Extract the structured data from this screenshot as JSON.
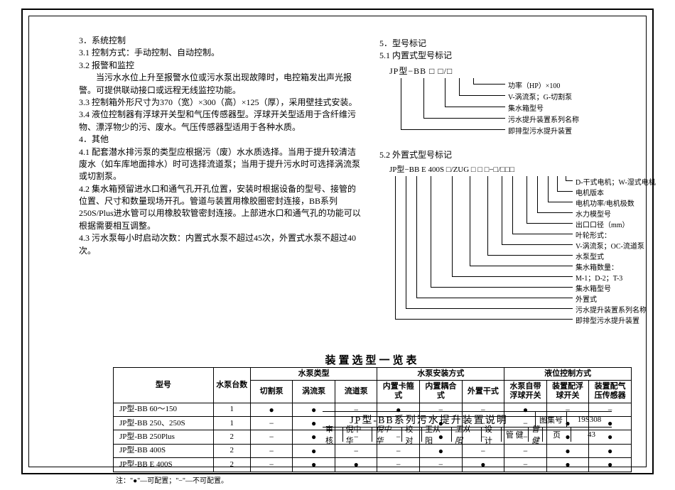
{
  "left": {
    "h3": "3．系统控制",
    "l31": "3.1 控制方式：手动控制、自动控制。",
    "l32": "3.2 报警和监控",
    "l32a": "当污水水位上升至报警水位或污水泵出现故障时，电控箱发出声光报警。可提供联动接口或远程无线监控功能。",
    "l33": "3.3 控制箱外形尺寸为370（宽）×300（高）×125（厚），采用壁挂式安装。",
    "l34": "3.4 液位控制器有浮球开关型和气压传感器型。浮球开关型适用于含纤维污物、漂浮物少的污、废水。气压传感器型适用于各种水质。",
    "h4": "4．其他",
    "l41": "4.1 配套潜水排污泵的类型应根据污（废）水水质选择。当用于提升较清洁废水（如车库地面排水）时可选择流道泵；当用于提升污水时可选择涡流泵或切割泵。",
    "l42": "4.2 集水箱预留进水口和通气孔开孔位置，安装时根据设备的型号、接管的位置、尺寸和数量现场开孔。管道与装置用橡胶圈密封连接，BB系列250S/Plus进水管可以用橡胶软管密封连接。上部进水口和通气孔的功能可以根据需要相互调整。",
    "l43": "4.3 污水泵每小时启动次数：内置式水泵不超过45次，外置式水泵不超过40次。"
  },
  "right": {
    "h5": "5．型号标记",
    "h51": "5.1 内置式型号标记",
    "model51": "JP型−BB □ □/□",
    "lbls51": [
      "功率（HP）×100",
      "V-涡流泵；G-切割泵",
      "集水箱型号",
      "污水提升装置系列名称",
      "即排型污水提升装置"
    ],
    "h52": "5.2 外置式型号标记",
    "model52": "JP型−BB E 400S □/ZUG □ □ □−□/□□□",
    "lbls52": [
      "D-干式电机；W-湿式电机",
      "电机版本",
      "电机功率/电机极数",
      "水力模型号",
      "出口口径（mm）",
      "叶轮形式：",
      "V-涡流泵；OC-流道泵",
      "水泵型式",
      "集水箱数量：",
      "M-1；D-2；T-3",
      "集水箱型号",
      "外置式",
      "污水提升装置系列名称",
      "即排型污水提升装置"
    ]
  },
  "tableTitle": "装置选型一览表",
  "table": {
    "groupHeaders": [
      "型号",
      "水泵台数",
      "水泵类型",
      "水泵安装方式",
      "液位控制方式"
    ],
    "subHeaders": [
      "切割泵",
      "涡流泵",
      "流道泵",
      "内置卡箍式",
      "内置耦合式",
      "外置干式",
      "水泵自带浮球开关",
      "装置配浮球开关",
      "装置配气压传感器"
    ],
    "rows": [
      {
        "m": "JP型-BB 60～150",
        "n": "1",
        "c": [
          "●",
          "●",
          "−",
          "●",
          "−",
          "−",
          "●",
          "−",
          "−"
        ]
      },
      {
        "m": "JP型-BB 250、250S",
        "n": "1",
        "c": [
          "−",
          "●",
          "−",
          "−",
          "●",
          "−",
          "−",
          "●",
          "●"
        ]
      },
      {
        "m": "JP型-BB 250Plus",
        "n": "2",
        "c": [
          "−",
          "●",
          "−",
          "−",
          "●",
          "−",
          "−",
          "●",
          "●"
        ]
      },
      {
        "m": "JP型-BB 400S",
        "n": "2",
        "c": [
          "−",
          "●",
          "−",
          "−",
          "●",
          "−",
          "−",
          "●",
          "●"
        ]
      },
      {
        "m": "JP型-BB E 400S",
        "n": "2",
        "c": [
          "−",
          "●",
          "●",
          "−",
          "−",
          "●",
          "−",
          "●",
          "●"
        ]
      }
    ],
    "note": "注：\"●\"—可配置；\"−\"—不可配置。"
  },
  "titleblock": {
    "main": "JP型-BB系列污水提升装置说明",
    "atlasLabel": "图集号",
    "atlas": "19S308",
    "reviewL": "审核",
    "review": "倪中华",
    "reviewSig": "倪中华",
    "checkL": "校对",
    "check": "王从阳",
    "checkSig": "王从阳",
    "designL": "设计",
    "design": "管 健",
    "designSig": "管健",
    "pageL": "页",
    "page": "43"
  }
}
